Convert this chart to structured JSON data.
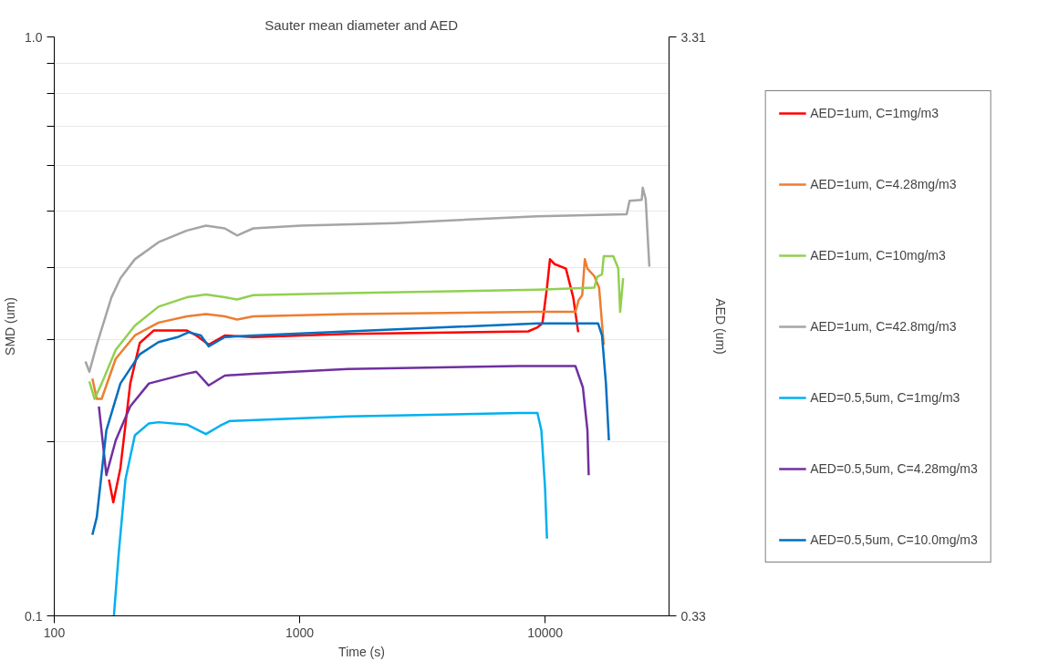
{
  "chart_data": {
    "type": "line",
    "title": "Sauter mean diameter and AED",
    "xlabel": "Time (s)",
    "ylabel": "SMD (um)",
    "y2label": "AED (um)",
    "xlim": [
      100,
      32000
    ],
    "xticks": [
      100,
      1000,
      10000
    ],
    "ylim": [
      0.1,
      1.0
    ],
    "yticks": [
      {
        "value": 1.0,
        "label": "1.0"
      },
      {
        "value": 0.9,
        "label": null
      },
      {
        "value": 0.8,
        "label": null
      },
      {
        "value": 0.7,
        "label": null
      },
      {
        "value": 0.6,
        "label": null
      },
      {
        "value": 0.5,
        "label": null
      },
      {
        "value": 0.4,
        "label": null
      },
      {
        "value": 0.3,
        "label": null
      },
      {
        "value": 0.2,
        "label": null
      },
      {
        "value": 0.1,
        "label": "0.1"
      }
    ],
    "y2lim": [
      0.33,
      3.31
    ],
    "y2ticks": [
      3.31,
      0.33
    ],
    "log": "xy",
    "grid": "y",
    "legend": "right",
    "marker": "none",
    "line_style": "solid",
    "series": [
      {
        "name": "AED=1um, C=1mg/m3",
        "color": "#ff0000",
        "x": [
          167,
          174,
          186,
          204,
          223,
          254,
          347,
          379,
          426,
          495,
          647,
          1574,
          8530,
          9310,
          9750,
          10180,
          10470,
          10950,
          12160,
          13020,
          13650
        ],
        "values": [
          0.172,
          0.157,
          0.18,
          0.252,
          0.296,
          0.311,
          0.311,
          0.305,
          0.294,
          0.305,
          0.303,
          0.307,
          0.31,
          0.315,
          0.32,
          0.369,
          0.413,
          0.405,
          0.398,
          0.355,
          0.309
        ]
      },
      {
        "name": "AED=1um, C=4.28mg/m3",
        "color": "#ed7d31",
        "x": [
          143,
          149,
          156,
          178,
          213,
          266,
          347,
          415,
          495,
          556,
          647,
          1574,
          9310,
          13300,
          13700,
          14170,
          14520,
          14880,
          15880,
          16600,
          17340
        ],
        "values": [
          0.257,
          0.237,
          0.237,
          0.278,
          0.305,
          0.321,
          0.329,
          0.332,
          0.329,
          0.325,
          0.329,
          0.332,
          0.335,
          0.335,
          0.351,
          0.358,
          0.413,
          0.398,
          0.386,
          0.369,
          0.294
        ]
      },
      {
        "name": "AED=1um, C=10mg/m3",
        "color": "#92d050",
        "x": [
          139,
          146,
          156,
          178,
          213,
          266,
          347,
          415,
          495,
          556,
          647,
          1574,
          9310,
          15880,
          16300,
          17060,
          17340,
          18970,
          19870,
          20230,
          20800
        ],
        "values": [
          0.254,
          0.237,
          0.252,
          0.288,
          0.317,
          0.342,
          0.355,
          0.359,
          0.355,
          0.352,
          0.358,
          0.361,
          0.366,
          0.369,
          0.385,
          0.389,
          0.418,
          0.418,
          0.398,
          0.335,
          0.383
        ]
      },
      {
        "name": "AED=1um, C=42.8mg/m3",
        "color": "#a5a5a5",
        "x": [
          134,
          139,
          149,
          171,
          186,
          213,
          266,
          347,
          415,
          495,
          556,
          647,
          1009,
          2455,
          9310,
          21500,
          22100,
          24760,
          25000,
          25700,
          26600
        ],
        "values": [
          0.275,
          0.264,
          0.294,
          0.355,
          0.383,
          0.413,
          0.442,
          0.463,
          0.472,
          0.467,
          0.454,
          0.467,
          0.472,
          0.477,
          0.49,
          0.494,
          0.521,
          0.523,
          0.549,
          0.525,
          0.401
        ]
      },
      {
        "name": "AED=0.5,5um, C=1mg/m3",
        "color": "#00b0f0",
        "x": [
          175,
          183,
          195,
          213,
          243,
          266,
          347,
          415,
          474,
          518,
          1574,
          7800,
          9310,
          9660,
          10000,
          10180
        ],
        "values": [
          0.1,
          0.128,
          0.172,
          0.205,
          0.215,
          0.216,
          0.214,
          0.206,
          0.213,
          0.217,
          0.221,
          0.224,
          0.224,
          0.209,
          0.166,
          0.136
        ]
      },
      {
        "name": "AED=0.5,5um, C=4.28mg/m3",
        "color": "#7030a0",
        "x": [
          152,
          163,
          178,
          204,
          243,
          347,
          379,
          426,
          495,
          647,
          1574,
          7800,
          13300,
          14260,
          14880,
          15060
        ],
        "values": [
          0.23,
          0.175,
          0.201,
          0.23,
          0.252,
          0.262,
          0.264,
          0.25,
          0.26,
          0.262,
          0.267,
          0.27,
          0.27,
          0.248,
          0.209,
          0.175
        ]
      },
      {
        "name": "AED=0.5,5um, C=10.0mg/m3",
        "color": "#0070c0",
        "x": [
          143,
          149,
          163,
          186,
          223,
          266,
          318,
          353,
          396,
          426,
          495,
          647,
          1574,
          9310,
          16440,
          17060,
          17700,
          18200
        ],
        "values": [
          0.138,
          0.148,
          0.209,
          0.252,
          0.283,
          0.297,
          0.303,
          0.309,
          0.305,
          0.292,
          0.303,
          0.305,
          0.31,
          0.32,
          0.32,
          0.305,
          0.252,
          0.201
        ]
      }
    ]
  }
}
